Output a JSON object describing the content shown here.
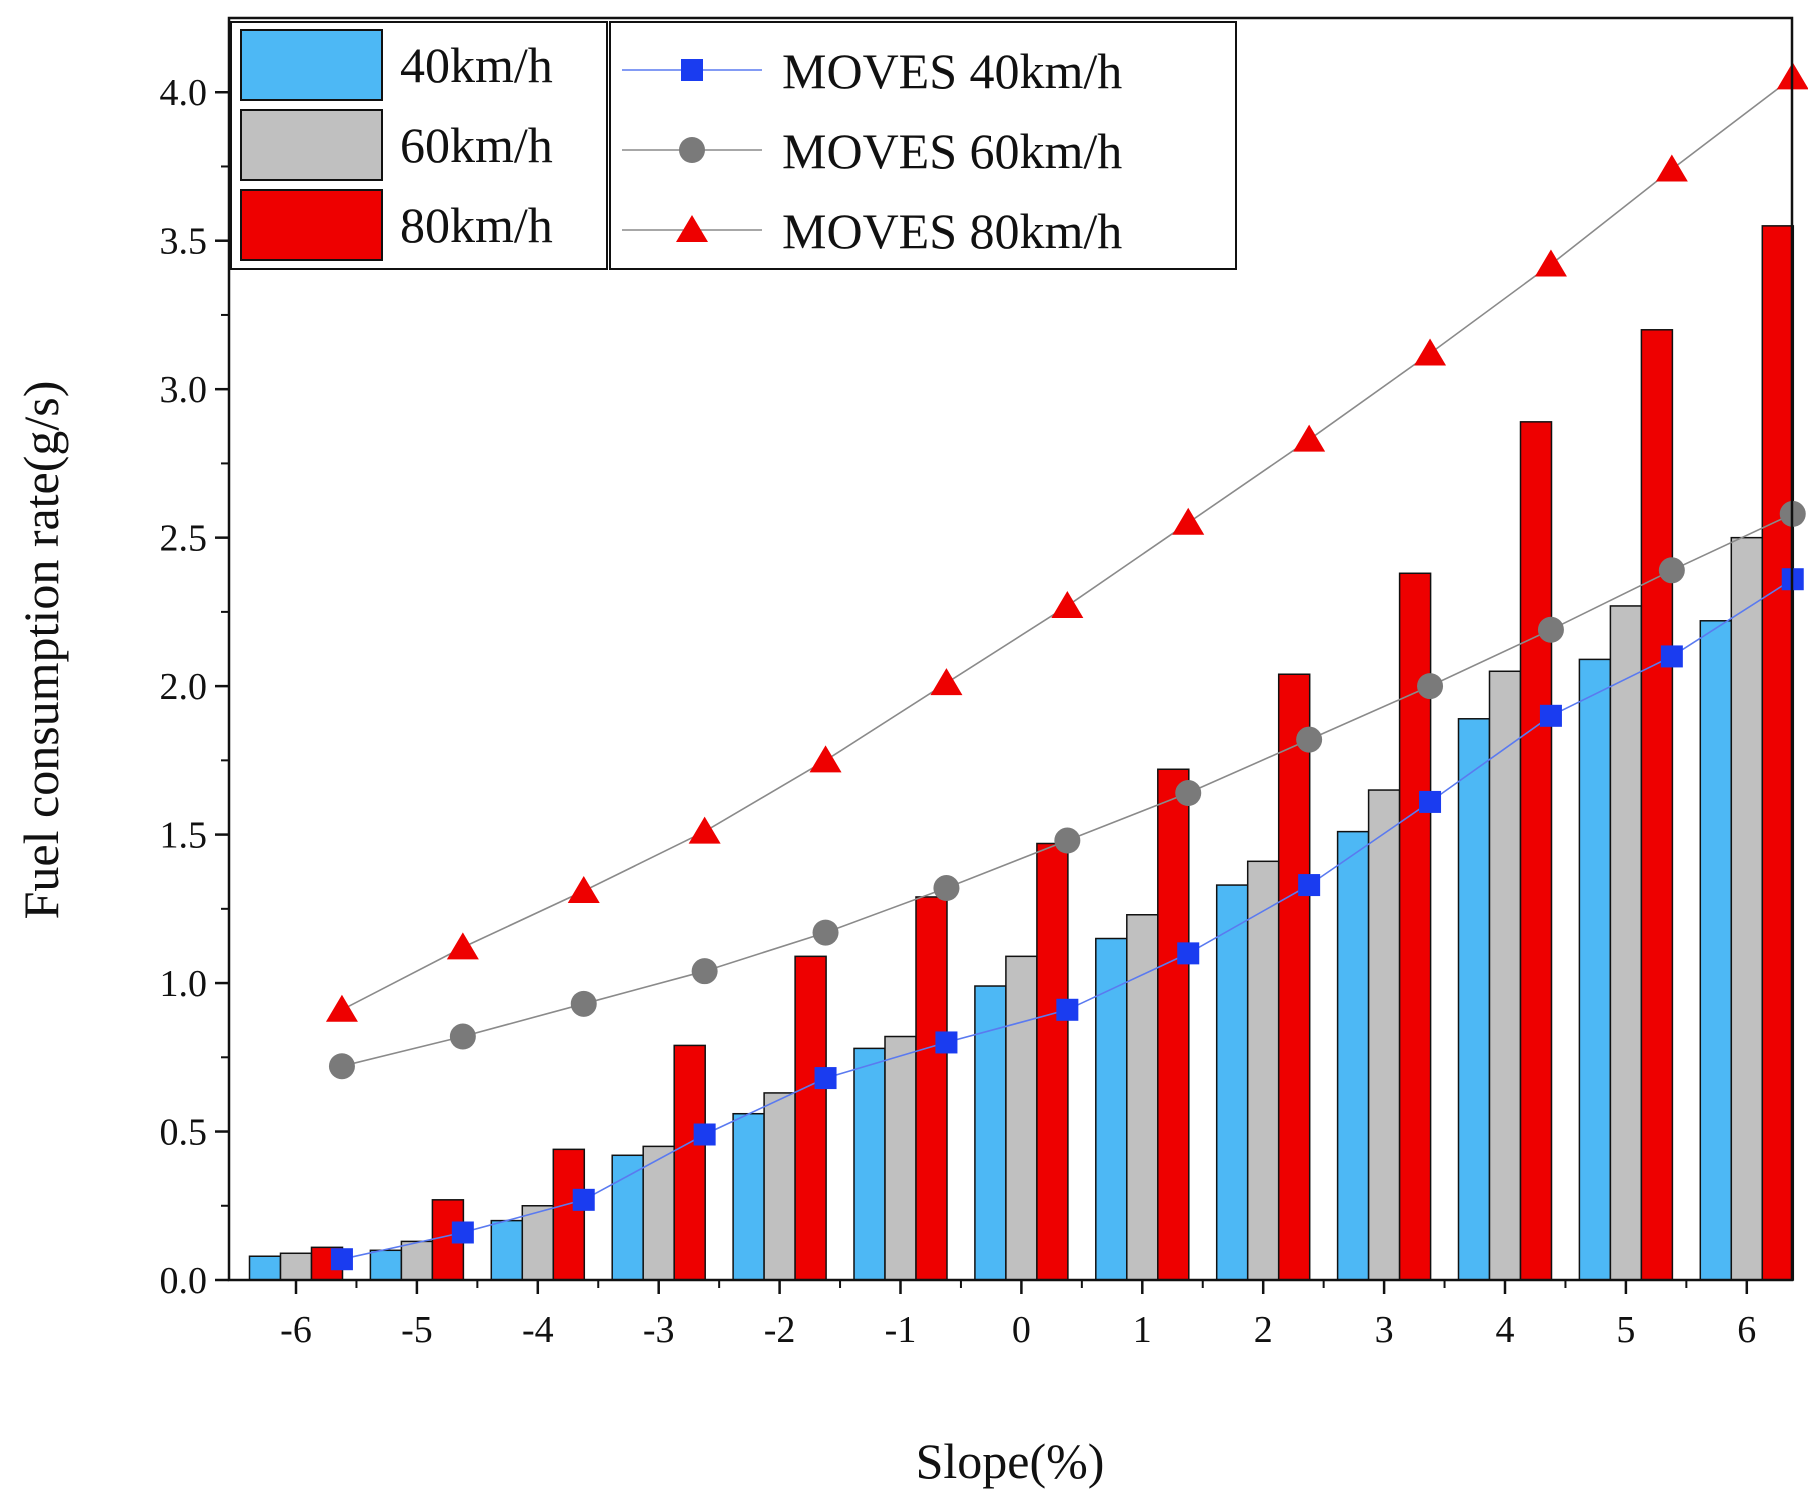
{
  "chart_data": {
    "type": "bar",
    "xlabel": "Slope(%)",
    "ylabel": "Fuel consumption rate(g/s)",
    "categories": [
      "-6",
      "-5",
      "-4",
      "-3",
      "-2",
      "-1",
      "0",
      "1",
      "2",
      "3",
      "4",
      "5",
      "6"
    ],
    "ylim": [
      0,
      4.25
    ],
    "yticks": [
      "0.0",
      "0.5",
      "1.0",
      "1.5",
      "2.0",
      "2.5",
      "3.0",
      "3.5",
      "4.0"
    ],
    "grid": false,
    "legend_position": "top-left",
    "bar_series": [
      {
        "name": "40km/h",
        "color": "#4db8f5",
        "values": [
          0.08,
          0.1,
          0.2,
          0.42,
          0.56,
          0.78,
          0.99,
          1.15,
          1.33,
          1.51,
          1.89,
          2.09,
          2.22
        ]
      },
      {
        "name": "60km/h",
        "color": "#c0c0c0",
        "values": [
          0.09,
          0.13,
          0.25,
          0.45,
          0.63,
          0.82,
          1.09,
          1.23,
          1.41,
          1.65,
          2.05,
          2.27,
          2.5
        ]
      },
      {
        "name": "80km/h",
        "color": "#ee0000",
        "values": [
          0.11,
          0.27,
          0.44,
          0.79,
          1.09,
          1.29,
          1.47,
          1.72,
          2.04,
          2.38,
          2.89,
          3.2,
          3.55
        ]
      }
    ],
    "line_series": [
      {
        "name": "MOVES 40km/h",
        "color": "#1a3cf0",
        "marker": "square",
        "values": [
          0.07,
          0.16,
          0.27,
          0.49,
          0.68,
          0.8,
          0.91,
          1.1,
          1.33,
          1.61,
          1.9,
          2.1,
          2.36
        ]
      },
      {
        "name": "MOVES 60km/h",
        "color": "#7a7a7a",
        "marker": "circle",
        "values": [
          0.72,
          0.82,
          0.93,
          1.04,
          1.17,
          1.32,
          1.48,
          1.64,
          1.82,
          2.0,
          2.19,
          2.39,
          2.58
        ]
      },
      {
        "name": "MOVES 80km/h",
        "color": "#ee0000",
        "marker": "triangle",
        "values": [
          0.91,
          1.12,
          1.31,
          1.51,
          1.75,
          2.01,
          2.27,
          2.55,
          2.83,
          3.12,
          3.42,
          3.74,
          4.05
        ]
      }
    ]
  }
}
